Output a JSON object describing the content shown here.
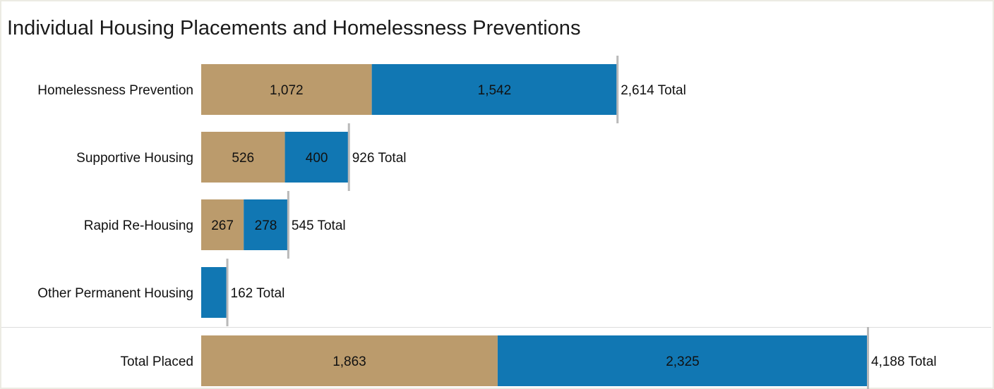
{
  "chart_data": {
    "type": "bar",
    "orientation": "horizontal",
    "stacked": true,
    "title": "Individual Housing Placements and Homelessness Preventions",
    "categories": [
      "Homelessness Prevention",
      "Supportive Housing",
      "Rapid Re-Housing",
      "Other Permanent Housing",
      "Total Placed"
    ],
    "series": [
      {
        "color": "#bb9b6c",
        "values": [
          1072,
          526,
          267,
          0,
          1863
        ]
      },
      {
        "color": "#1177b3",
        "values": [
          1542,
          400,
          278,
          162,
          2325
        ]
      }
    ],
    "value_labels": [
      [
        "1,072",
        "526",
        "267",
        "",
        "1,863"
      ],
      [
        "1,542",
        "400",
        "278",
        "",
        "2,325"
      ]
    ],
    "totals": [
      "2,614 Total",
      "926 Total",
      "545 Total",
      "162 Total",
      "4,188 Total"
    ],
    "xlim": [
      0,
      4188
    ],
    "grid": false,
    "legend": "none"
  }
}
